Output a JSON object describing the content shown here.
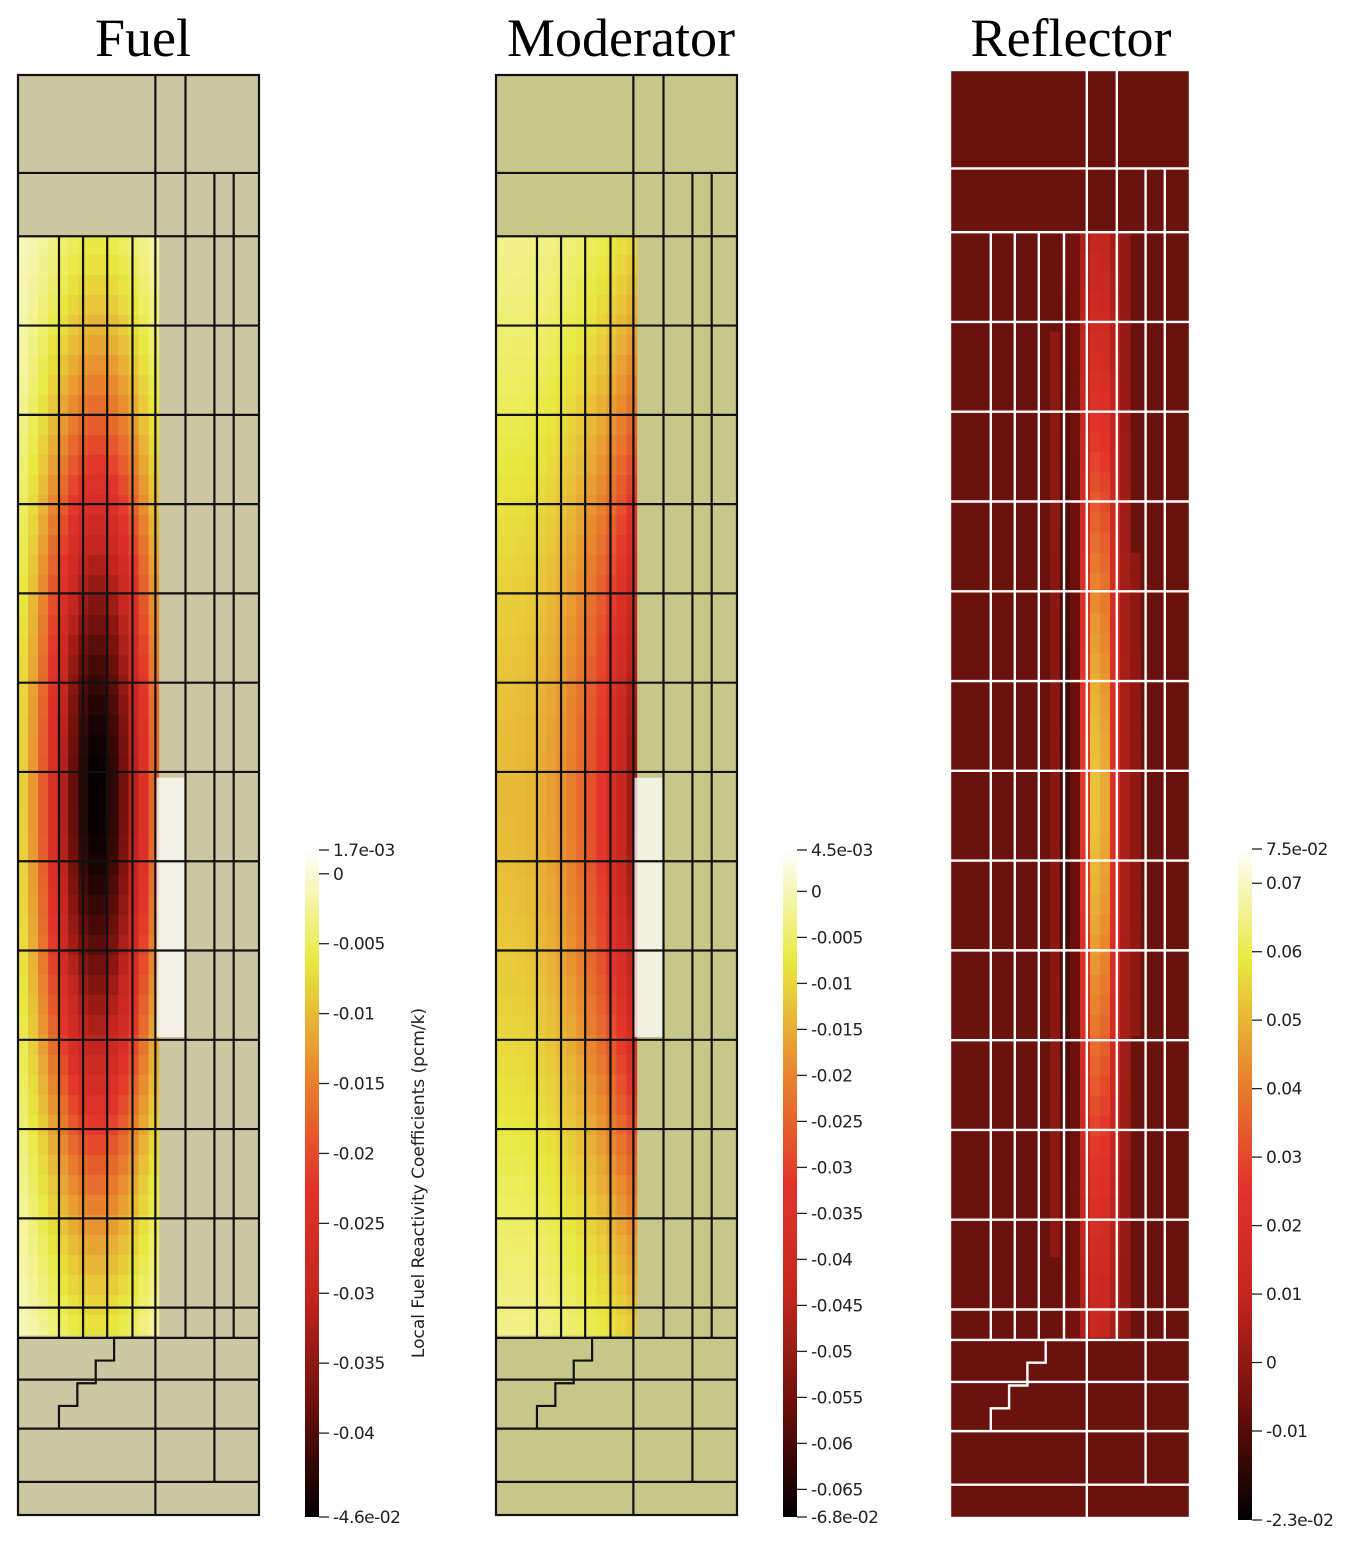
{
  "colors": {
    "background": "#ffffff",
    "fuel_base": "#cdc7a1",
    "moderator_base": "#c8c78a",
    "reflector_base": "#6a130c",
    "grid_dark": "#111111",
    "grid_light": "#ffffff"
  },
  "colormap": [
    "#000000",
    "#6b0f0b",
    "#c3261e",
    "#e2342a",
    "#e8872e",
    "#e8e93f",
    "#ffffff"
  ],
  "chart_data": [
    {
      "type": "heatmap",
      "title": "Fuel",
      "colorbar_label": "Local Fuel Reactivity Coefficients (pcm/k)",
      "range": [
        -0.046,
        0.0017
      ],
      "range_labels": [
        "-4.6e-02",
        "1.7e-03"
      ],
      "ticks": [
        0,
        -0.005,
        -0.01,
        -0.015,
        -0.02,
        -0.025,
        -0.03,
        -0.035,
        -0.04
      ],
      "tick_labels": [
        "0",
        "-0.005",
        "-0.01",
        "-0.015",
        "-0.02",
        "-0.025",
        "-0.03",
        "-0.035",
        "-0.04"
      ],
      "region_value": 0,
      "bright_value": 0.0017,
      "hotspot": {
        "min_value": -0.046,
        "shape": "core",
        "channel_column": 4
      }
    },
    {
      "type": "heatmap",
      "title": "Moderator",
      "colorbar_label": "",
      "range": [
        -0.068,
        0.0045
      ],
      "range_labels": [
        "-6.8e-02",
        "4.5e-03"
      ],
      "ticks": [
        0,
        -0.005,
        -0.01,
        -0.015,
        -0.02,
        -0.025,
        -0.03,
        -0.035,
        -0.04,
        -0.045,
        -0.05,
        -0.055,
        -0.06,
        -0.065
      ],
      "tick_labels": [
        "0",
        "-0.005",
        "-0.01",
        "-0.015",
        "-0.02",
        "-0.025",
        "-0.03",
        "-0.035",
        "-0.04",
        "-0.045",
        "-0.05",
        "-0.055",
        "-0.06",
        "-0.065"
      ],
      "region_value": 0,
      "bright_value": 0.0045,
      "hotspot": {
        "min_value": -0.068,
        "shape": "edge",
        "channel_column": 4
      }
    },
    {
      "type": "heatmap",
      "title": "Reflector",
      "colorbar_label": "",
      "range": [
        -0.023,
        0.075
      ],
      "range_labels": [
        "-2.3e-02",
        "7.5e-02"
      ],
      "ticks": [
        0.07,
        0.06,
        0.05,
        0.04,
        0.03,
        0.02,
        0.01,
        0,
        -0.01
      ],
      "tick_labels": [
        "0.07",
        "0.06",
        "0.05",
        "0.04",
        "0.03",
        "0.02",
        "0.01",
        "0",
        "-0.01"
      ],
      "region_value": 0,
      "bright_value": 0.055,
      "hotspot": {
        "min_value": -0.023,
        "shape": "reflector",
        "channel_column": 4
      }
    }
  ]
}
